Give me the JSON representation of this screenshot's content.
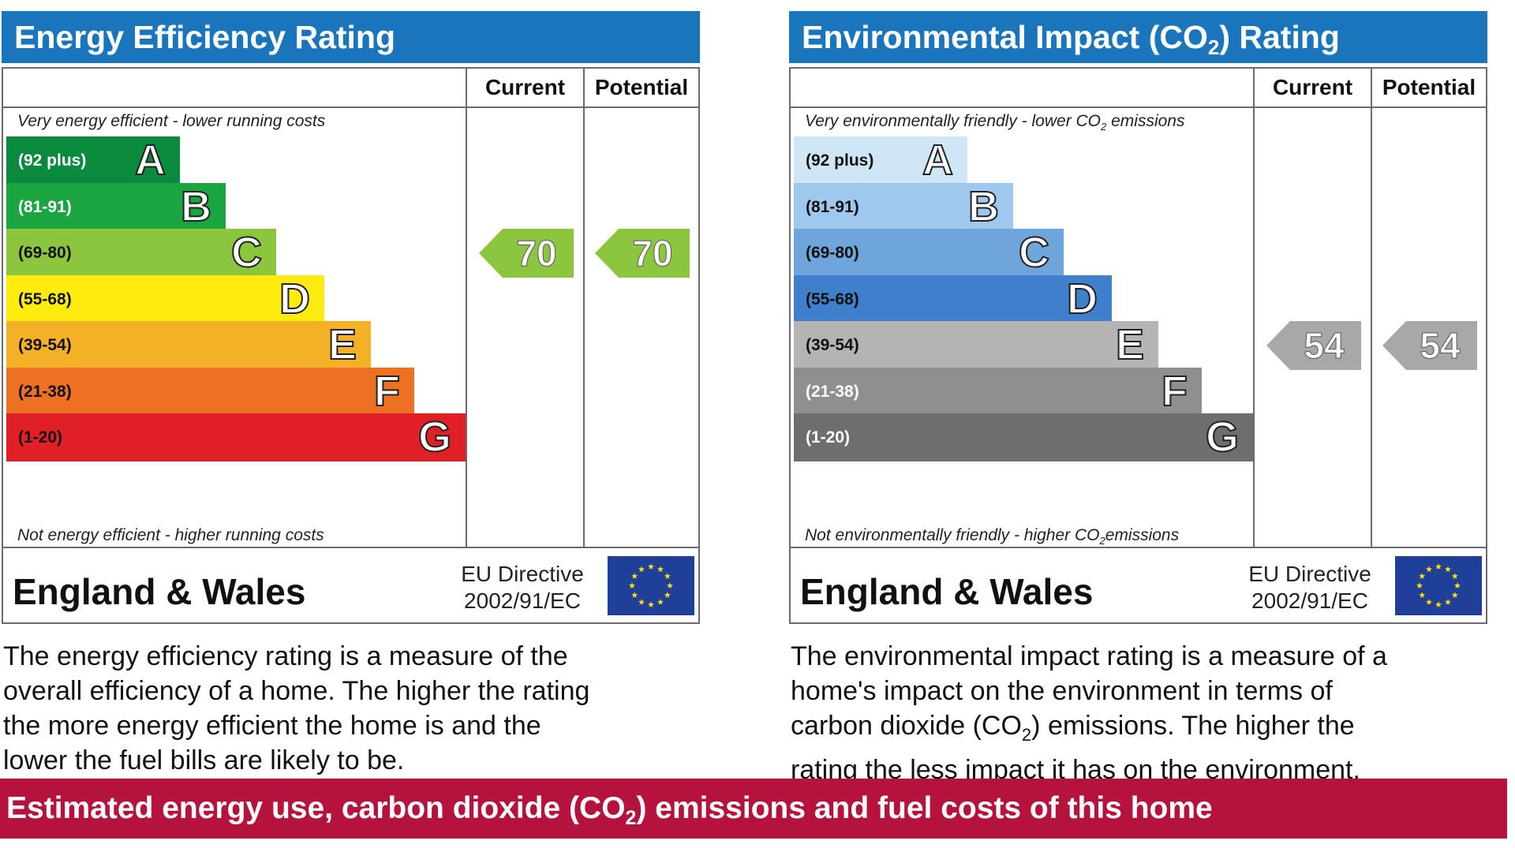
{
  "chart_data": [
    {
      "type": "bar",
      "title": "Energy Efficiency Rating",
      "columns": [
        "Current",
        "Potential"
      ],
      "top_note": "Very energy efficient - lower running costs",
      "bottom_note": "Not energy efficient - higher running costs",
      "bands": [
        {
          "range": "(92 plus)",
          "letter": "A",
          "color": "#0a8a3c",
          "range_color": "#ffffff"
        },
        {
          "range": "(81-91)",
          "letter": "B",
          "color": "#1aa541",
          "range_color": "#ffffff"
        },
        {
          "range": "(69-80)",
          "letter": "C",
          "color": "#8cc63e",
          "range_color": "#111111"
        },
        {
          "range": "(55-68)",
          "letter": "D",
          "color": "#ffec0e",
          "range_color": "#111111"
        },
        {
          "range": "(39-54)",
          "letter": "E",
          "color": "#f4b128",
          "range_color": "#111111"
        },
        {
          "range": "(21-38)",
          "letter": "F",
          "color": "#ec7123",
          "range_color": "#111111"
        },
        {
          "range": "(1-20)",
          "letter": "G",
          "color": "#e11f26",
          "range_color": "#111111"
        }
      ],
      "current": 70,
      "potential": 70,
      "arrow_color": "#8cc63e",
      "region": "England & Wales",
      "directive": [
        "EU Directive",
        "2002/91/EC"
      ]
    },
    {
      "type": "bar",
      "title": "Environmental Impact (CO2) Rating",
      "columns": [
        "Current",
        "Potential"
      ],
      "top_note": "Very environmentally friendly - lower CO2 emissions",
      "bottom_note": "Not environmentally friendly - higher CO2 emissions",
      "bands": [
        {
          "range": "(92 plus)",
          "letter": "A",
          "color": "#cfe6f7",
          "range_color": "#111111"
        },
        {
          "range": "(81-91)",
          "letter": "B",
          "color": "#9ec8ee",
          "range_color": "#111111"
        },
        {
          "range": "(69-80)",
          "letter": "C",
          "color": "#6ea6dc",
          "range_color": "#111111"
        },
        {
          "range": "(55-68)",
          "letter": "D",
          "color": "#3f7fcb",
          "range_color": "#111111"
        },
        {
          "range": "(39-54)",
          "letter": "E",
          "color": "#b4b4b4",
          "range_color": "#111111"
        },
        {
          "range": "(21-38)",
          "letter": "F",
          "color": "#8f8f8f",
          "range_color": "#ffffff"
        },
        {
          "range": "(1-20)",
          "letter": "G",
          "color": "#6e6e6e",
          "range_color": "#ffffff"
        }
      ],
      "current": 54,
      "potential": 54,
      "arrow_color": "#a8a8a8",
      "region": "England & Wales",
      "directive": [
        "EU Directive",
        "2002/91/EC"
      ]
    }
  ],
  "energy": {
    "title": "Energy Efficiency Rating",
    "description": [
      "The energy efficiency rating is a measure of the",
      "overall efficiency of a home. The higher the rating",
      "the more energy efficient the home is and the",
      "lower the fuel bills are likely to be."
    ]
  },
  "env": {
    "title_pre": "Environmental Impact (CO",
    "title_sub": "2",
    "title_post": ") Rating",
    "top_note_pre": "Very environmentally friendly - lower CO",
    "top_note_sub": "2",
    "top_note_post": " emissions",
    "bottom_note_pre": "Not environmentally friendly - higher CO",
    "bottom_note_sub": "2",
    "bottom_note_post": "emissions",
    "description": [
      "The environmental impact rating is a measure of a",
      "home's impact on the environment in terms of",
      "carbon dioxide (CO",
      ") emissions. The higher the",
      "rating the less impact it has on the environment."
    ],
    "desc_sub": "2"
  },
  "banner": {
    "pre": "Estimated energy use, carbon dioxide (CO",
    "sub": "2",
    "post": ") emissions and fuel costs of this home"
  },
  "icons": {
    "flag": "eu-flag-icon",
    "arrow": "rating-arrow-icon"
  }
}
